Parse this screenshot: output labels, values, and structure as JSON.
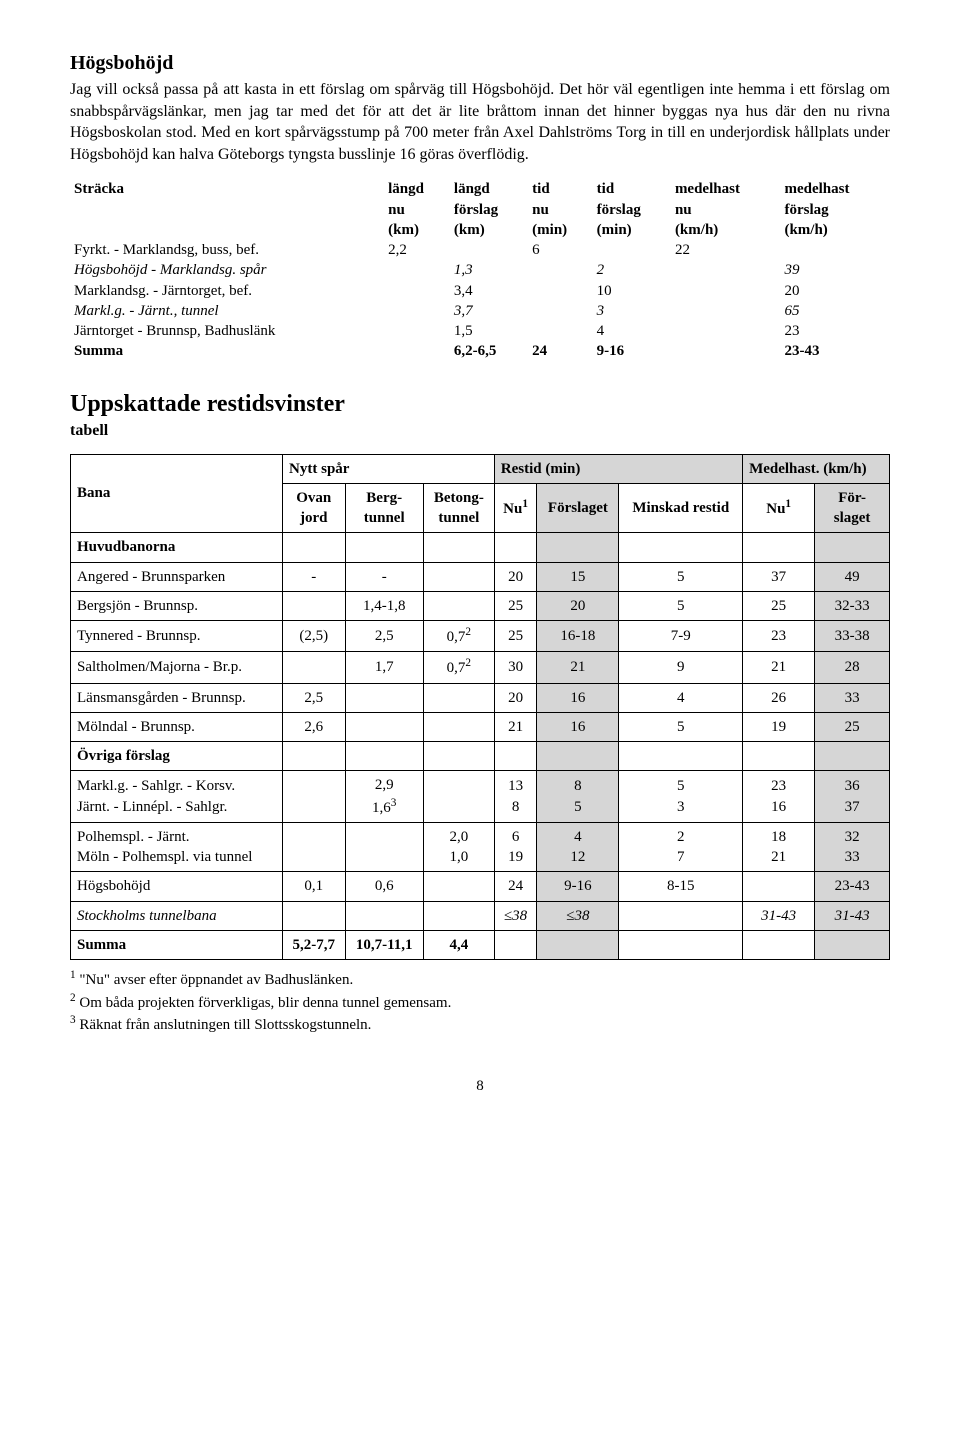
{
  "section1": {
    "title": "Högsbohöjd",
    "paragraph": "Jag vill också passa på att kasta in ett förslag om spårväg till Högsbohöjd. Det hör väl egentligen inte hemma i ett förslag om snabbspårvägslänkar, men jag tar med det för att det är lite bråttom innan det hinner byggas nya hus där den nu rivna Högsboskolan stod. Med en kort spårvägsstump på 700 meter från Axel Dahlströms Torg in till en underjordisk hållplats under Högsbohöjd kan halva Göteborgs tyngsta busslinje 16 göras överflödig."
  },
  "table1": {
    "headers": {
      "c0": "Sträcka",
      "c1a": "längd",
      "c1b": "nu",
      "c1c": "(km)",
      "c2a": "längd",
      "c2b": "förslag",
      "c2c": "(km)",
      "c3a": "tid",
      "c3b": "nu",
      "c3c": "(min)",
      "c4a": "tid",
      "c4b": "förslag",
      "c4c": "(min)",
      "c5a": "medelhast",
      "c5b": "nu",
      "c5c": "(km/h)",
      "c6a": "medelhast",
      "c6b": "förslag",
      "c6c": "(km/h)"
    },
    "rows": [
      {
        "label": "Fyrkt. - Marklandsg, buss, bef.",
        "v": [
          "2,2",
          "",
          "6",
          "",
          "22",
          ""
        ],
        "italic": false,
        "indent": false
      },
      {
        "label": "Högsbohöjd - Marklandsg. spår",
        "v": [
          "",
          "1,3",
          "",
          "2",
          "",
          "39"
        ],
        "italic": true,
        "indent": true
      },
      {
        "label": "Marklandsg. - Järntorget, bef.",
        "v": [
          "",
          "3,4",
          "",
          "10",
          "",
          "20"
        ],
        "italic": false,
        "indent": false
      },
      {
        "label": "Markl.g. - Järnt., tunnel",
        "v": [
          "",
          "3,7",
          "",
          "3",
          "",
          "65"
        ],
        "italic": true,
        "indent": true
      },
      {
        "label": "Järntorget - Brunnsp, Badhuslänk",
        "v": [
          "",
          "1,5",
          "",
          "4",
          "",
          "23"
        ],
        "italic": false,
        "indent": false
      },
      {
        "label": "Summa",
        "v": [
          "",
          "6,2-6,5",
          "24",
          "9-16",
          "",
          "23-43"
        ],
        "italic": false,
        "bold": true,
        "indent": false
      }
    ]
  },
  "section2": {
    "title": "Uppskattade restidsvinster",
    "subtitle": "tabell"
  },
  "table2": {
    "head": {
      "bana": "Bana",
      "nyttspar": "Nytt spår",
      "restid": "Restid (min)",
      "medelhast": "Medelhast. (km/h)",
      "ovan": "Ovan\njord",
      "berg": "Berg-\ntunnel",
      "betong": "Betong-\ntunnel",
      "nu1": "Nu",
      "sup1": "1",
      "forslaget": "Förslaget",
      "minskad": "Minskad restid",
      "nu2": "Nu",
      "sup2": "1",
      "for2": "För-\nslaget"
    },
    "group_huvud": "Huvudbanorna",
    "rows_huvud": [
      {
        "label": "Angered - Brunnsparken",
        "ovan": "-",
        "berg": "-",
        "betong": "",
        "nu": "20",
        "for": "15",
        "min": "5",
        "nu2": "37",
        "for2": "49"
      },
      {
        "label": "Bergsjön - Brunnsp.",
        "ovan": "",
        "berg": "1,4-1,8",
        "betong": "",
        "nu": "25",
        "for": "20",
        "min": "5",
        "nu2": "25",
        "for2": "32-33"
      },
      {
        "label": "Tynnered - Brunnsp.",
        "ovan": "(2,5)",
        "berg": "2,5",
        "betong": "0,7",
        "betong_sup": "2",
        "nu": "25",
        "for": "16-18",
        "min": "7-9",
        "nu2": "23",
        "for2": "33-38"
      },
      {
        "label": "Saltholmen/Majorna - Br.p.",
        "ovan": "",
        "berg": "1,7",
        "betong": "0,7",
        "betong_sup": "2",
        "nu": "30",
        "for": "21",
        "min": "9",
        "nu2": "21",
        "for2": "28"
      },
      {
        "label": "Länsmansgården - Brunnsp.",
        "ovan": "2,5",
        "berg": "",
        "betong": "",
        "nu": "20",
        "for": "16",
        "min": "4",
        "nu2": "26",
        "for2": "33"
      },
      {
        "label": "Mölndal - Brunnsp.",
        "ovan": "2,6",
        "berg": "",
        "betong": "",
        "nu": "21",
        "for": "16",
        "min": "5",
        "nu2": "19",
        "for2": "25"
      }
    ],
    "group_ovriga": "Övriga förslag",
    "rows_ovriga": [
      {
        "label": "Markl.g. - Sahlgr. - Korsv.",
        "label2": "Järnt. - Linnépl. - Sahlgr.",
        "ovan": "",
        "berg": "2,9",
        "berg2": "1,6",
        "berg2_sup": "3",
        "betong": "",
        "nu": "13",
        "nu_2": "8",
        "for": "8",
        "for_2": "5",
        "min": "5",
        "min_2": "3",
        "nu2": "23",
        "nu2_2": "16",
        "for2": "36",
        "for2_2": "37"
      },
      {
        "label": "Polhemspl. - Järnt.",
        "label2": "Möln - Polhemspl. via tunnel",
        "ovan": "",
        "berg": "",
        "betong": "2,0",
        "betong_2": "1,0",
        "nu": "6",
        "nu_2": "19",
        "for": "4",
        "for_2": "12",
        "min": "2",
        "min_2": "7",
        "nu2": "18",
        "nu2_2": "21",
        "for2": "32",
        "for2_2": "33"
      },
      {
        "label": "Högsbohöjd",
        "ovan": "0,1",
        "berg": "0,6",
        "betong": "",
        "nu": "24",
        "for": "9-16",
        "min": "8-15",
        "nu2": "",
        "for2": "23-43"
      },
      {
        "label": "Stockholms tunnelbana",
        "italic": true,
        "ovan": "",
        "berg": "",
        "betong": "",
        "nu": "≤38",
        "for": "≤38",
        "min": "",
        "nu2": "31-43",
        "for2": "31-43",
        "nu2_italic": true,
        "for_italic": true,
        "nu_italic": true,
        "for2_italic": true
      }
    ],
    "summa": {
      "label": "Summa",
      "ovan": "5,2-7,7",
      "berg": "10,7-11,1",
      "betong": "4,4",
      "nu": "",
      "for": "",
      "min": "",
      "nu2": "",
      "for2": ""
    }
  },
  "footnotes": {
    "f1": "\"Nu\" avser efter öppnandet av Badhuslänken.",
    "f2": "Om båda projekten förverkligas, blir denna tunnel gemensam.",
    "f3": "Räknat från anslutningen till Slottsskogstunneln."
  },
  "pagenum": "8"
}
